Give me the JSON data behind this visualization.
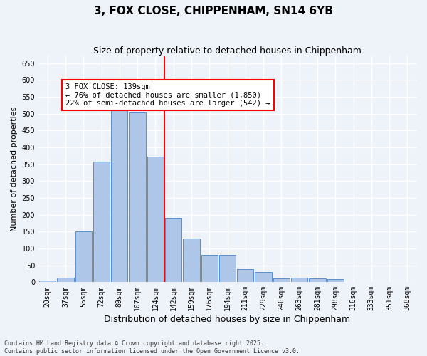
{
  "title": "3, FOX CLOSE, CHIPPENHAM, SN14 6YB",
  "subtitle": "Size of property relative to detached houses in Chippenham",
  "xlabel": "Distribution of detached houses by size in Chippenham",
  "ylabel": "Number of detached properties",
  "categories": [
    "20sqm",
    "37sqm",
    "55sqm",
    "72sqm",
    "89sqm",
    "107sqm",
    "124sqm",
    "142sqm",
    "159sqm",
    "176sqm",
    "194sqm",
    "211sqm",
    "229sqm",
    "246sqm",
    "263sqm",
    "281sqm",
    "298sqm",
    "316sqm",
    "333sqm",
    "351sqm",
    "368sqm"
  ],
  "values": [
    5,
    13,
    150,
    358,
    540,
    503,
    372,
    190,
    130,
    80,
    80,
    38,
    30,
    12,
    13,
    11,
    10,
    0,
    0,
    0,
    0
  ],
  "bar_color": "#aec6e8",
  "bar_edge_color": "#5b8fc9",
  "vline_x_index": 7,
  "annotation_text": "3 FOX CLOSE: 139sqm\n← 76% of detached houses are smaller (1,850)\n22% of semi-detached houses are larger (542) →",
  "annotation_box_color": "white",
  "annotation_box_edge_color": "red",
  "ylim": [
    0,
    670
  ],
  "yticks": [
    0,
    50,
    100,
    150,
    200,
    250,
    300,
    350,
    400,
    450,
    500,
    550,
    600,
    650
  ],
  "background_color": "#eef2f9",
  "grid_color": "white",
  "footer_text": "Contains HM Land Registry data © Crown copyright and database right 2025.\nContains public sector information licensed under the Open Government Licence v3.0.",
  "title_fontsize": 11,
  "subtitle_fontsize": 9,
  "xlabel_fontsize": 9,
  "ylabel_fontsize": 8,
  "footer_fontsize": 6,
  "tick_fontsize": 7
}
